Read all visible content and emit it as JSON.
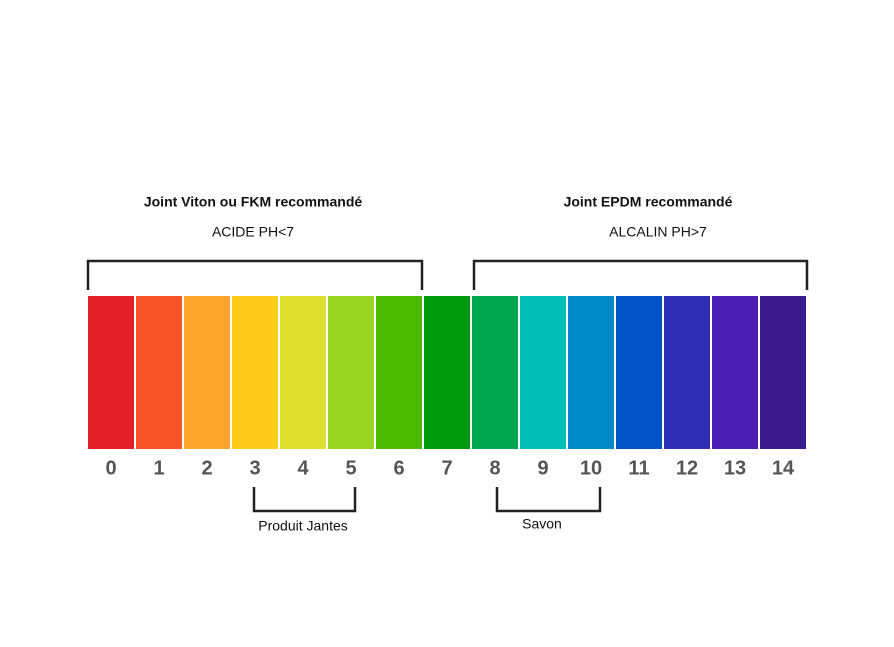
{
  "groups": [
    {
      "title": "Joint Viton ou FKM recommandé",
      "subtitle": "ACIDE PH<7"
    },
    {
      "title": "Joint EPDM recommandé",
      "subtitle": "ALCALIN PH>7"
    }
  ],
  "scale": {
    "labels": [
      "0",
      "1",
      "2",
      "3",
      "4",
      "5",
      "6",
      "7",
      "8",
      "9",
      "10",
      "11",
      "12",
      "13",
      "14"
    ],
    "colors": [
      "#e31e26",
      "#f7542a",
      "#fba52b",
      "#fecb1a",
      "#dde12d",
      "#99d521",
      "#4db800",
      "#009a0c",
      "#00a650",
      "#00bdb5",
      "#0089c8",
      "#0052c7",
      "#2e2fb4",
      "#4a1db5",
      "#3a1a8c"
    ]
  },
  "brackets": [
    {
      "label": "Produit Jantes"
    },
    {
      "label": "Savon"
    }
  ]
}
